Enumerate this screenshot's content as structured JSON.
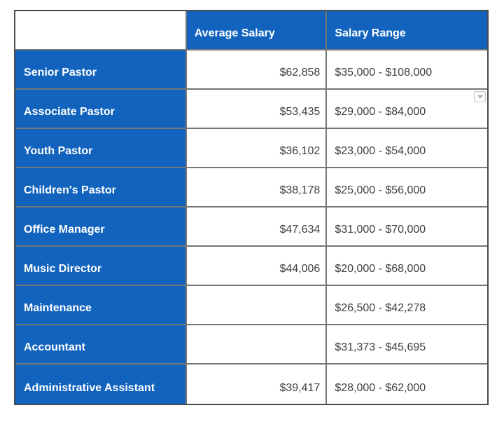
{
  "chart_data": {
    "type": "table",
    "columns": [
      "",
      "Average Salary",
      "Salary Range"
    ],
    "rows": [
      [
        "Senior Pastor",
        "$62,858",
        "$35,000 - $108,000"
      ],
      [
        "Associate Pastor",
        "$53,435",
        "$29,000 - $84,000"
      ],
      [
        "Youth Pastor",
        "$36,102",
        "$23,000 - $54,000"
      ],
      [
        "Children's Pastor",
        "$38,178",
        "$25,000 - $56,000"
      ],
      [
        "Office Manager",
        "$47,634",
        "$31,000 - $70,000"
      ],
      [
        "Music Director",
        "$44,006",
        "$20,000 - $68,000"
      ],
      [
        "Maintenance",
        "",
        "$26,500 - $42,278"
      ],
      [
        "Accountant",
        "",
        "$31,373 - $45,695"
      ],
      [
        "Administrative Assistant",
        "$39,417",
        "$28,000 - $62,000"
      ]
    ],
    "layout_hints": {
      "header_fill": "blue",
      "row_label_fill": "blue",
      "value_alignment": {
        "average_salary": "right",
        "salary_range": "left"
      },
      "grid": "on"
    }
  },
  "colors": {
    "header_blue": "#1263BE",
    "header_text": "#FFFFFF",
    "value_text": "#3E3E3E",
    "inner_border": "#767676",
    "outer_border": "#4A4A4A",
    "background": "#FFFFFF"
  },
  "widgets": {
    "dropdown_icon": "chevron-down-icon"
  }
}
